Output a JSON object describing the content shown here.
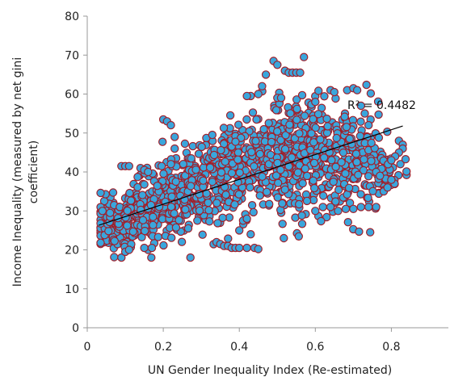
{
  "chart_data": {
    "type": "scatter",
    "title": "",
    "xlabel": "UN Gender Inequality Index (Re-estimated)",
    "ylabel_lines": [
      "Income Inequality (measured by net gini",
      "coefficient)"
    ],
    "xlim": [
      0,
      0.95
    ],
    "ylim": [
      0,
      80
    ],
    "xticks": [
      "0",
      "0.2",
      "0.4",
      "0.6",
      "0.8"
    ],
    "yticks": [
      "0",
      "10",
      "20",
      "30",
      "40",
      "50",
      "60",
      "70",
      "80"
    ],
    "grid": false,
    "legend": "none",
    "marker_fill": "#3aa6dc",
    "marker_edge": "#a01f2a",
    "trendline": {
      "type": "linear",
      "x": [
        0.03,
        0.83
      ],
      "y": [
        26.3,
        51.8
      ],
      "color": "#000000"
    },
    "r2_label": "R² = 0.4482",
    "point_count_note": "",
    "clusters": [
      {
        "cx": 0.08,
        "cy": 26,
        "sx": 0.03,
        "sy": 3,
        "n": 120
      },
      {
        "cx": 0.14,
        "cy": 30,
        "sx": 0.04,
        "sy": 4,
        "n": 140
      },
      {
        "cx": 0.22,
        "cy": 33,
        "sx": 0.05,
        "sy": 4.5,
        "n": 150
      },
      {
        "cx": 0.3,
        "cy": 36,
        "sx": 0.05,
        "sy": 5,
        "n": 150
      },
      {
        "cx": 0.38,
        "cy": 40,
        "sx": 0.05,
        "sy": 6,
        "n": 150
      },
      {
        "cx": 0.46,
        "cy": 43,
        "sx": 0.05,
        "sy": 6,
        "n": 150
      },
      {
        "cx": 0.54,
        "cy": 45,
        "sx": 0.05,
        "sy": 7,
        "n": 170
      },
      {
        "cx": 0.62,
        "cy": 44,
        "sx": 0.05,
        "sy": 7,
        "n": 170
      },
      {
        "cx": 0.7,
        "cy": 42,
        "sx": 0.04,
        "sy": 7,
        "n": 130
      },
      {
        "cx": 0.78,
        "cy": 40,
        "sx": 0.03,
        "sy": 4,
        "n": 40
      }
    ],
    "highlight_points": [
      [
        0.49,
        68.5
      ],
      [
        0.5,
        67.5
      ],
      [
        0.52,
        66
      ],
      [
        0.53,
        65.5
      ],
      [
        0.54,
        65.5
      ],
      [
        0.55,
        65.5
      ],
      [
        0.56,
        65.5
      ],
      [
        0.57,
        69.5
      ],
      [
        0.47,
        65
      ],
      [
        0.46,
        62
      ],
      [
        0.45,
        60
      ],
      [
        0.43,
        59.5
      ],
      [
        0.42,
        59.5
      ],
      [
        0.5,
        59
      ],
      [
        0.51,
        59
      ],
      [
        0.6,
        58
      ],
      [
        0.64,
        61
      ],
      [
        0.65,
        60.5
      ],
      [
        0.7,
        61.5
      ],
      [
        0.71,
        61
      ],
      [
        0.72,
        57
      ],
      [
        0.73,
        55
      ],
      [
        0.74,
        52
      ],
      [
        0.82,
        48
      ],
      [
        0.83,
        47
      ],
      [
        0.83,
        46
      ],
      [
        0.82,
        45
      ],
      [
        0.81,
        44
      ],
      [
        0.8,
        43
      ],
      [
        0.2,
        53.5
      ],
      [
        0.21,
        53
      ],
      [
        0.22,
        52
      ],
      [
        0.23,
        49
      ],
      [
        0.23,
        46
      ],
      [
        0.22,
        42
      ],
      [
        0.05,
        30
      ],
      [
        0.04,
        30
      ],
      [
        0.06,
        29.5
      ],
      [
        0.09,
        41.5
      ],
      [
        0.1,
        41.5
      ],
      [
        0.11,
        41.5
      ],
      [
        0.14,
        41
      ],
      [
        0.15,
        40.5
      ],
      [
        0.16,
        40
      ],
      [
        0.09,
        18
      ],
      [
        0.1,
        19.5
      ],
      [
        0.11,
        20
      ],
      [
        0.16,
        20
      ],
      [
        0.15,
        20.5
      ],
      [
        0.17,
        20.5
      ],
      [
        0.34,
        22
      ],
      [
        0.35,
        21.5
      ],
      [
        0.36,
        21
      ],
      [
        0.37,
        21
      ],
      [
        0.38,
        20.5
      ],
      [
        0.39,
        20.5
      ],
      [
        0.4,
        20.5
      ],
      [
        0.42,
        20.5
      ],
      [
        0.44,
        20.5
      ],
      [
        0.45,
        20.2
      ],
      [
        0.4,
        25
      ],
      [
        0.41,
        27.5
      ],
      [
        0.42,
        28
      ],
      [
        0.43,
        24
      ],
      [
        0.6,
        30
      ],
      [
        0.62,
        31
      ],
      [
        0.64,
        31
      ],
      [
        0.66,
        30
      ],
      [
        0.68,
        30.5
      ],
      [
        0.7,
        30.5
      ],
      [
        0.72,
        31
      ],
      [
        0.74,
        31
      ],
      [
        0.76,
        31
      ],
      [
        0.78,
        35
      ],
      [
        0.79,
        36
      ],
      [
        0.8,
        38
      ],
      [
        0.76,
        40
      ],
      [
        0.77,
        39
      ]
    ]
  }
}
